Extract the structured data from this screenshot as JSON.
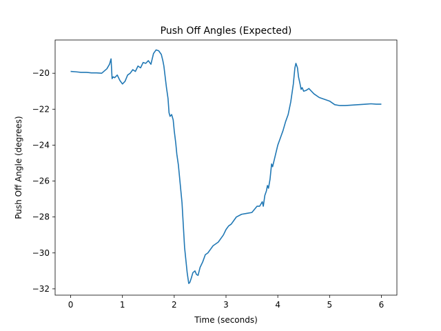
{
  "chart_data": {
    "type": "line",
    "title": "Push Off Angles (Expected)",
    "xlabel": "Time (seconds)",
    "ylabel": "Push Off Angle (degrees)",
    "xlim": [
      -0.3,
      6.3
    ],
    "ylim": [
      -32.35,
      -18.15
    ],
    "xticks": [
      0,
      1,
      2,
      3,
      4,
      5,
      6
    ],
    "yticks": [
      -32,
      -30,
      -28,
      -26,
      -24,
      -22,
      -20
    ],
    "xtick_labels": [
      "0",
      "1",
      "2",
      "3",
      "4",
      "5",
      "6"
    ],
    "ytick_labels": [
      "−32",
      "−30",
      "−28",
      "−26",
      "−24",
      "−22",
      "−20"
    ],
    "grid": false,
    "color": "#1f77b4",
    "series": [
      {
        "x": [
          0.0,
          0.1,
          0.2,
          0.3,
          0.4,
          0.5,
          0.6,
          0.7,
          0.75,
          0.78,
          0.8,
          0.82,
          0.85,
          0.9,
          0.95,
          1.0,
          1.05,
          1.1,
          1.15,
          1.2,
          1.25,
          1.3,
          1.35,
          1.4,
          1.45,
          1.5,
          1.55,
          1.6,
          1.65,
          1.7,
          1.75,
          1.78,
          1.8,
          1.85,
          1.88,
          1.9,
          1.92,
          1.95,
          1.98,
          2.0,
          2.03,
          2.05,
          2.08,
          2.1,
          2.15,
          2.2,
          2.25,
          2.28,
          2.3,
          2.33,
          2.36,
          2.4,
          2.43,
          2.46,
          2.5,
          2.55,
          2.6,
          2.65,
          2.7,
          2.75,
          2.8,
          2.85,
          2.9,
          2.95,
          3.0,
          3.05,
          3.1,
          3.15,
          3.2,
          3.3,
          3.4,
          3.5,
          3.6,
          3.65,
          3.7,
          3.72,
          3.75,
          3.78,
          3.8,
          3.82,
          3.85,
          3.88,
          3.9,
          3.95,
          4.0,
          4.05,
          4.1,
          4.15,
          4.2,
          4.25,
          4.3,
          4.33,
          4.35,
          4.38,
          4.4,
          4.43,
          4.45,
          4.47,
          4.5,
          4.55,
          4.6,
          4.65,
          4.7,
          4.8,
          4.9,
          5.0,
          5.1,
          5.2,
          5.3,
          5.4,
          5.5,
          5.6,
          5.7,
          5.8,
          5.9,
          6.0
        ],
        "y": [
          -19.9,
          -19.92,
          -19.95,
          -19.95,
          -19.98,
          -19.98,
          -20.0,
          -19.75,
          -19.5,
          -19.2,
          -20.3,
          -20.2,
          -20.25,
          -20.1,
          -20.4,
          -20.6,
          -20.45,
          -20.1,
          -20.0,
          -19.8,
          -19.9,
          -19.6,
          -19.7,
          -19.4,
          -19.45,
          -19.3,
          -19.5,
          -18.9,
          -18.7,
          -18.75,
          -18.95,
          -19.3,
          -19.6,
          -20.8,
          -21.4,
          -22.2,
          -22.4,
          -22.3,
          -22.6,
          -23.2,
          -23.9,
          -24.5,
          -25.1,
          -25.7,
          -27.2,
          -29.7,
          -31.1,
          -31.7,
          -31.65,
          -31.4,
          -31.1,
          -31.0,
          -31.2,
          -31.25,
          -30.8,
          -30.5,
          -30.1,
          -30.0,
          -29.8,
          -29.6,
          -29.5,
          -29.4,
          -29.2,
          -29.0,
          -28.7,
          -28.5,
          -28.4,
          -28.2,
          -28.0,
          -27.85,
          -27.8,
          -27.75,
          -27.4,
          -27.4,
          -27.15,
          -27.4,
          -26.8,
          -26.55,
          -26.25,
          -26.4,
          -25.9,
          -25.05,
          -25.2,
          -24.6,
          -24.0,
          -23.6,
          -23.2,
          -22.7,
          -22.3,
          -21.6,
          -20.6,
          -19.7,
          -19.45,
          -19.7,
          -20.2,
          -20.6,
          -20.9,
          -20.8,
          -21.0,
          -20.95,
          -20.85,
          -21.0,
          -21.15,
          -21.35,
          -21.45,
          -21.55,
          -21.75,
          -21.8,
          -21.8,
          -21.78,
          -21.76,
          -21.74,
          -21.72,
          -21.7,
          -21.72,
          -21.72
        ]
      }
    ]
  }
}
